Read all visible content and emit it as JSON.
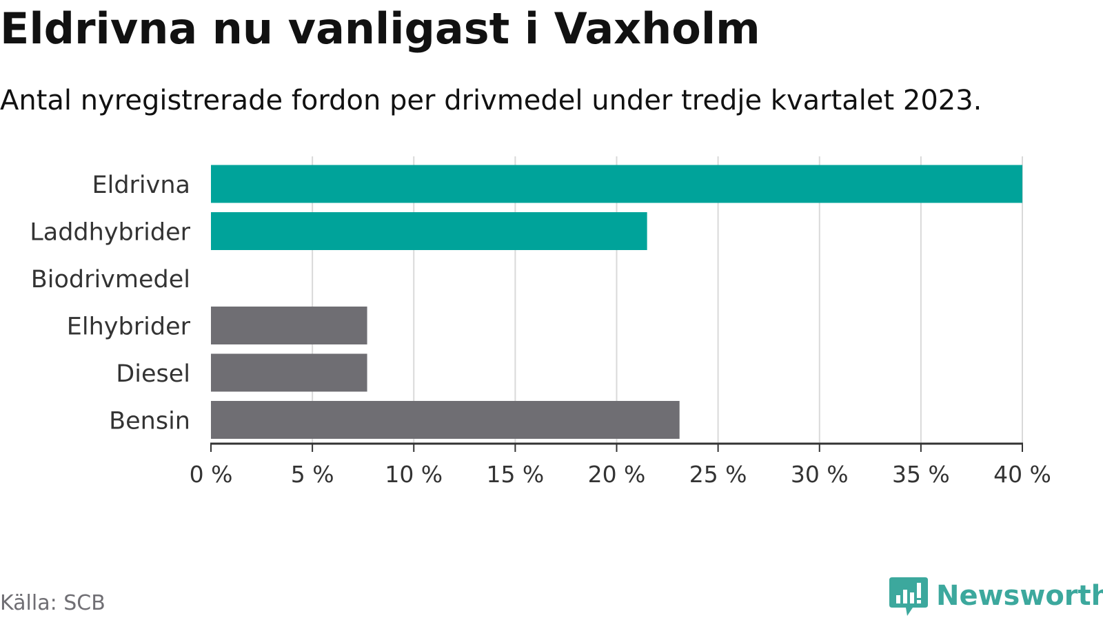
{
  "title": "Eldrivna nu vanligast i Vaxholm",
  "subtitle": "Antal nyregistrerade fordon per drivmedel under tredje kvartalet 2023.",
  "source": "Källa: SCB",
  "brand": {
    "name": "Newsworthy",
    "icon": "newsworthy-logo-icon",
    "color": "#3ca89d"
  },
  "colors": {
    "highlight": "#00a39a",
    "muted": "#6f6e73",
    "grid": "#d9d9d9",
    "axis": "#333333",
    "text": "#333333"
  },
  "chart_data": {
    "type": "bar",
    "orientation": "horizontal",
    "categories": [
      "Eldrivna",
      "Laddhybrider",
      "Biodrivmedel",
      "Elhybrider",
      "Diesel",
      "Bensin"
    ],
    "values": [
      40.0,
      21.5,
      0.0,
      7.7,
      7.7,
      23.1
    ],
    "bar_colors": [
      "#00a39a",
      "#00a39a",
      "#6f6e73",
      "#6f6e73",
      "#6f6e73",
      "#6f6e73"
    ],
    "x_ticks": [
      0,
      5,
      10,
      15,
      20,
      25,
      30,
      35,
      40
    ],
    "x_tick_labels": [
      "0 %",
      "5 %",
      "10 %",
      "15 %",
      "20 %",
      "25 %",
      "30 %",
      "35 %",
      "40 %"
    ],
    "xlim": [
      0,
      40
    ],
    "unit": "%",
    "grid": true,
    "legend": "none"
  }
}
